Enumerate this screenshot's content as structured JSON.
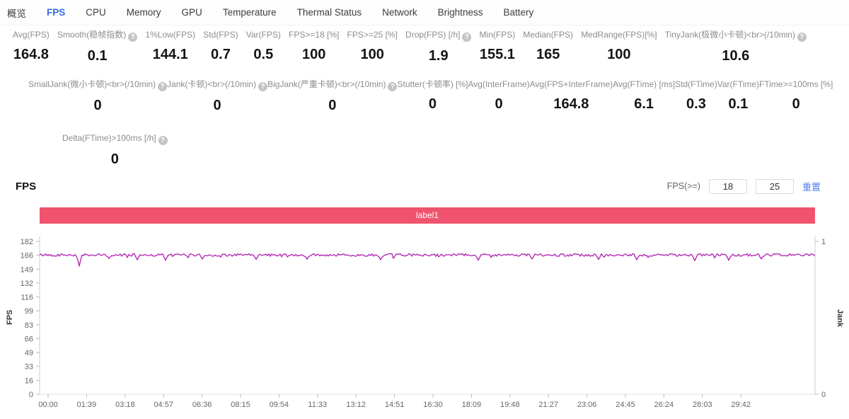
{
  "nav": {
    "items": [
      {
        "id": "overview",
        "label": "概览",
        "active": false
      },
      {
        "id": "fps",
        "label": "FPS",
        "active": true
      },
      {
        "id": "cpu",
        "label": "CPU",
        "active": false
      },
      {
        "id": "memory",
        "label": "Memory",
        "active": false
      },
      {
        "id": "gpu",
        "label": "GPU",
        "active": false
      },
      {
        "id": "temperature",
        "label": "Temperature",
        "active": false
      },
      {
        "id": "thermal-status",
        "label": "Thermal Status",
        "active": false
      },
      {
        "id": "network",
        "label": "Network",
        "active": false
      },
      {
        "id": "brightness",
        "label": "Brightness",
        "active": false
      },
      {
        "id": "battery",
        "label": "Battery",
        "active": false
      }
    ]
  },
  "stats": {
    "rows": [
      [
        {
          "label": "Avg(FPS)",
          "value": "164.8"
        },
        {
          "label": "Smooth(稳帧指数)",
          "help": true,
          "value": "0.1"
        },
        {
          "label": "1%Low(FPS)",
          "value": "144.1"
        },
        {
          "label": "Std(FPS)",
          "value": "0.7"
        },
        {
          "label": "Var(FPS)",
          "value": "0.5"
        },
        {
          "label": "FPS>=18 [%]",
          "value": "100"
        },
        {
          "label": "FPS>=25 [%]",
          "value": "100"
        },
        {
          "label": "Drop(FPS) [/h]",
          "help": true,
          "value": "1.9"
        },
        {
          "label": "Min(FPS)",
          "value": "155.1"
        },
        {
          "label": "Median(FPS)",
          "value": "165"
        },
        {
          "label": "MedRange(FPS)[%]",
          "value": "100"
        },
        {
          "label": "TinyJank(极微小卡顿)",
          "label2": "(/10min)",
          "help": true,
          "value": "10.6"
        }
      ],
      [
        {
          "label": "SmallJank(微小卡顿)",
          "label2": "(/10min)",
          "help": true,
          "value": "0"
        },
        {
          "label": "Jank(卡顿)",
          "label2": "(/10min)",
          "help": true,
          "value": "0"
        },
        {
          "label": "BigJank(严重卡顿)",
          "label2": "(/10min)",
          "help": true,
          "value": "0"
        },
        {
          "label": "Stutter(卡顿率) [%]",
          "value": "0"
        },
        {
          "label": "Avg(InterFrame)",
          "value": "0"
        },
        {
          "label": "Avg(FPS+InterFrame)",
          "value": "164.8"
        },
        {
          "label": "Avg(FTime) [ms]",
          "value": "6.1"
        },
        {
          "label": "Std(FTime)",
          "value": "0.3"
        },
        {
          "label": "Var(FTime)",
          "value": "0.1"
        },
        {
          "label": "FTime>=100ms [%]",
          "value": "0"
        }
      ],
      [
        {
          "label": "Delta(FTime)>100ms [/h]",
          "help": true,
          "value": "0"
        }
      ]
    ]
  },
  "section": {
    "title": "FPS",
    "filter_label": "FPS(>=)",
    "threshold_low": "18",
    "threshold_high": "25",
    "reset_label": "重置"
  },
  "chart_data": {
    "type": "line",
    "legend": {
      "label": "label1",
      "bar_color": "#f0536e"
    },
    "x_ticks": [
      "00:00",
      "01:39",
      "03:18",
      "04:57",
      "06:36",
      "08:15",
      "09:54",
      "11:33",
      "13:12",
      "14:51",
      "16:30",
      "18:09",
      "19:48",
      "21:27",
      "23:06",
      "24:45",
      "26:24",
      "28:03",
      "29:42"
    ],
    "y_axis_left": {
      "label": "FPS",
      "ticks": [
        182,
        166,
        149,
        132,
        116,
        99,
        83,
        66,
        49,
        33,
        16,
        0
      ],
      "min": 0,
      "max": 182
    },
    "y_axis_right": {
      "label": "Jank",
      "ticks": [
        1,
        0
      ],
      "min": 0,
      "max": 1
    },
    "grid": false,
    "series": [
      {
        "name": "label1",
        "color": "#b42cb4",
        "shape": "flat-noisy-line",
        "baseline_fps": 165.8,
        "noise_amplitude": 1.5,
        "dips": [
          {
            "x_frac": 0.052,
            "fps": 152.5
          },
          {
            "x_frac": 0.09,
            "fps": 161.5
          },
          {
            "x_frac": 0.125,
            "fps": 160
          },
          {
            "x_frac": 0.163,
            "fps": 159.5
          },
          {
            "x_frac": 0.21,
            "fps": 161
          },
          {
            "x_frac": 0.28,
            "fps": 160.5
          },
          {
            "x_frac": 0.345,
            "fps": 160.8
          },
          {
            "x_frac": 0.44,
            "fps": 160
          },
          {
            "x_frac": 0.565,
            "fps": 159.5
          },
          {
            "x_frac": 0.635,
            "fps": 161
          },
          {
            "x_frac": 0.72,
            "fps": 160.5
          },
          {
            "x_frac": 0.77,
            "fps": 160
          },
          {
            "x_frac": 0.845,
            "fps": 159
          },
          {
            "x_frac": 0.888,
            "fps": 159.5
          },
          {
            "x_frac": 0.93,
            "fps": 161
          }
        ]
      }
    ]
  },
  "colors": {
    "accent_blue": "#2f6ce0",
    "legend_bar": "#f0536e",
    "line_magenta": "#b42cb4",
    "axis_grey": "#cccccc"
  }
}
